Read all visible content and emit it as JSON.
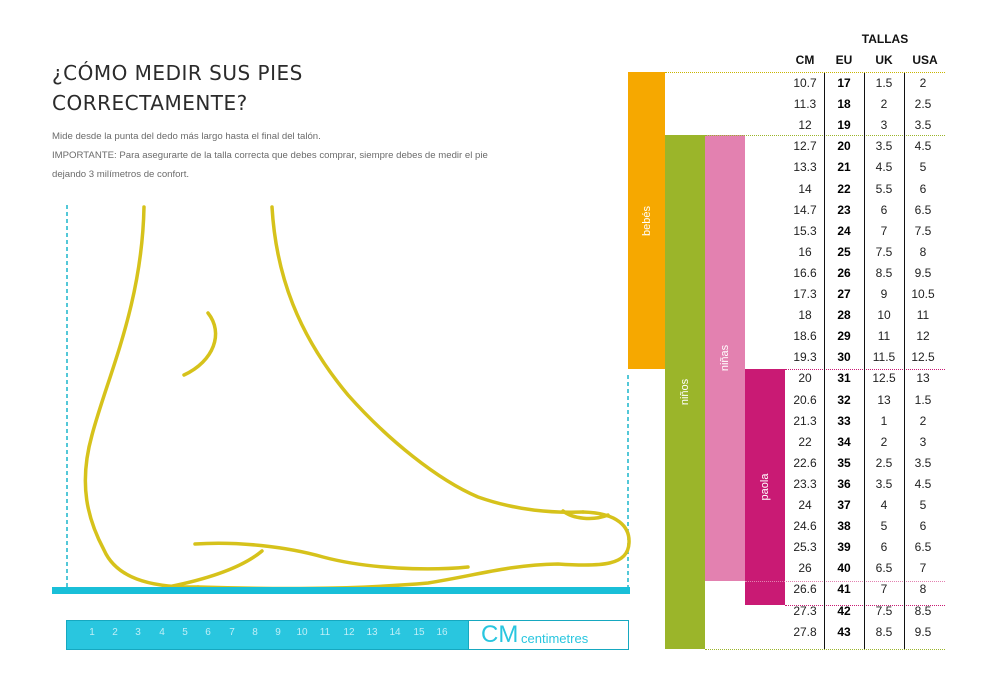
{
  "header": {
    "title_line1": "¿CÓMO MEDIR SUS PIES",
    "title_line2": "CORRECTAMENTE?",
    "desc_line1": "Mide desde la punta del dedo más largo hasta el final del talón.",
    "desc_line2": "IMPORTANTE: Para asegurarte de la talla correcta que debes comprar, siempre debes de medir el pie",
    "desc_line3": "dejando 3 milímetros de confort."
  },
  "ruler": {
    "numbers": [
      "1",
      "2",
      "3",
      "4",
      "5",
      "6",
      "7",
      "8",
      "9",
      "10",
      "11",
      "12",
      "13",
      "14",
      "15",
      "16"
    ],
    "unit_abbr": "CM",
    "unit_word": "centimetres"
  },
  "categories": {
    "bebes": "bebés",
    "ninos": "niños",
    "ninas": "niñas",
    "paola": "paola"
  },
  "table": {
    "title": "TALLAS",
    "columns": [
      "CM",
      "EU",
      "UK",
      "USA"
    ],
    "rows": [
      [
        "10.7",
        "17",
        "1.5",
        "2"
      ],
      [
        "11.3",
        "18",
        "2",
        "2.5"
      ],
      [
        "12",
        "19",
        "3",
        "3.5"
      ],
      [
        "12.7",
        "20",
        "3.5",
        "4.5"
      ],
      [
        "13.3",
        "21",
        "4.5",
        "5"
      ],
      [
        "14",
        "22",
        "5.5",
        "6"
      ],
      [
        "14.7",
        "23",
        "6",
        "6.5"
      ],
      [
        "15.3",
        "24",
        "7",
        "7.5"
      ],
      [
        "16",
        "25",
        "7.5",
        "8"
      ],
      [
        "16.6",
        "26",
        "8.5",
        "9.5"
      ],
      [
        "17.3",
        "27",
        "9",
        "10.5"
      ],
      [
        "18",
        "28",
        "10",
        "11"
      ],
      [
        "18.6",
        "29",
        "11",
        "12"
      ],
      [
        "19.3",
        "30",
        "11.5",
        "12.5"
      ],
      [
        "20",
        "31",
        "12.5",
        "13"
      ],
      [
        "20.6",
        "32",
        "13",
        "1.5"
      ],
      [
        "21.3",
        "33",
        "1",
        "2"
      ],
      [
        "22",
        "34",
        "2",
        "3"
      ],
      [
        "22.6",
        "35",
        "2.5",
        "3.5"
      ],
      [
        "23.3",
        "36",
        "3.5",
        "4.5"
      ],
      [
        "24",
        "37",
        "4",
        "5"
      ],
      [
        "24.6",
        "38",
        "5",
        "6"
      ],
      [
        "25.3",
        "39",
        "6",
        "6.5"
      ],
      [
        "26",
        "40",
        "6.5",
        "7"
      ],
      [
        "26.6",
        "41",
        "7",
        "8"
      ],
      [
        "27.3",
        "42",
        "7.5",
        "8.5"
      ],
      [
        "27.8",
        "43",
        "8.5",
        "9.5"
      ]
    ]
  },
  "colors": {
    "foot_outline": "#d6c21b",
    "ruler": "#29c6df",
    "bebes": "#f6a800",
    "ninos": "#9bb52a",
    "ninas": "#e381b0",
    "paola": "#c91a74"
  }
}
